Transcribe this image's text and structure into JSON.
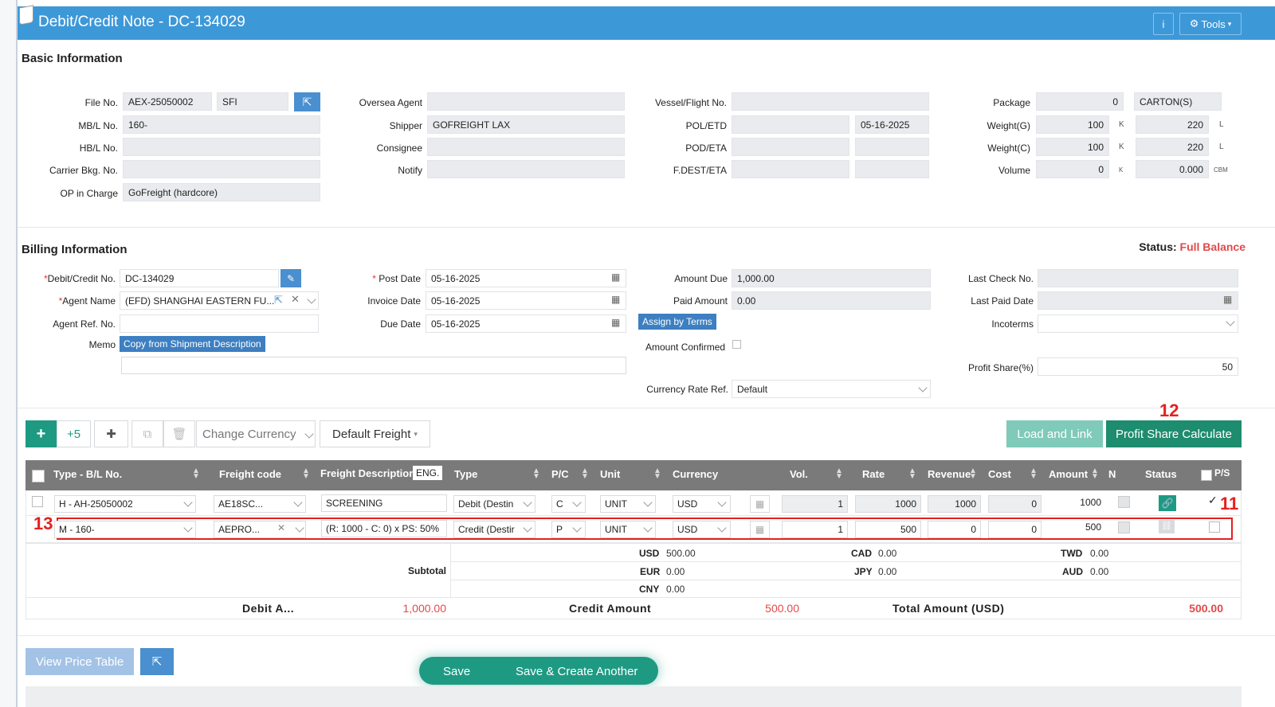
{
  "header": {
    "title": "Debit/Credit Note - DC-134029",
    "info_label": "i",
    "tools_label": "Tools"
  },
  "basic": {
    "title": "Basic Information",
    "file_no_label": "File No.",
    "file_no": "AEX-25050002",
    "file_sfi": "SFI",
    "mbl_label": "MB/L No.",
    "mbl": "160-",
    "hbl_label": "HB/L No.",
    "hbl": "",
    "carrier_label": "Carrier Bkg. No.",
    "carrier": "",
    "op_label": "OP in Charge",
    "op": "GoFreight (hardcore)",
    "oversea_label": "Oversea Agent",
    "oversea": "",
    "shipper_label": "Shipper",
    "shipper": "GOFREIGHT LAX",
    "consignee_label": "Consignee",
    "consignee": "",
    "notify_label": "Notify",
    "notify": "",
    "vessel_label": "Vessel/Flight No.",
    "vessel": "",
    "pol_label": "POL/ETD",
    "pol": "",
    "etd": "05-16-2025",
    "pod_label": "POD/ETA",
    "pod": "",
    "eta": "",
    "fdest_label": "F.DEST/ETA",
    "fdest": "",
    "fdest_eta": "",
    "package_label": "Package",
    "package": "0",
    "package_unit": "CARTON(S)",
    "weightg_label": "Weight(G)",
    "weightg_k": "100",
    "weightg_k_unit": "K",
    "weightg_l": "220",
    "weightg_l_unit": "L",
    "weightc_label": "Weight(C)",
    "weightc_k": "100",
    "weightc_k_unit": "K",
    "weightc_l": "220",
    "weightc_l_unit": "L",
    "volume_label": "Volume",
    "volume_k": "0",
    "volume_k_unit": "K",
    "volume_cbm": "0.000",
    "volume_cbm_unit": "CBM"
  },
  "billing": {
    "title": "Billing Information",
    "status_label": "Status:",
    "status": "Full Balance",
    "dc_no_label": "Debit/Credit No.",
    "dc_no": "DC-134029",
    "agent_label": "Agent Name",
    "agent": "(EFD) SHANGHAI EASTERN FU...",
    "agent_ref_label": "Agent Ref. No.",
    "agent_ref": "",
    "memo_label": "Memo",
    "copy_btn": "Copy from Shipment Description",
    "post_date_label": "Post Date",
    "post_date": "05-16-2025",
    "invoice_date_label": "Invoice Date",
    "invoice_date": "05-16-2025",
    "due_date_label": "Due Date",
    "due_date": "05-16-2025",
    "amount_due_label": "Amount Due",
    "amount_due": "1,000.00",
    "paid_label": "Paid Amount",
    "paid": "0.00",
    "assign_btn": "Assign by Terms",
    "confirmed_label": "Amount Confirmed",
    "rate_ref_label": "Currency Rate Ref.",
    "rate_ref": "Default",
    "last_check_label": "Last Check No.",
    "last_check": "",
    "last_paid_label": "Last Paid Date",
    "last_paid": "",
    "incoterms_label": "Incoterms",
    "incoterms": "",
    "profit_label": "Profit Share(%)",
    "profit": "50"
  },
  "toolbar": {
    "add": "+",
    "plus5": "+5",
    "change_currency": "Change Currency",
    "default_freight": "Default Freight",
    "load_link": "Load and Link",
    "profit_calc": "Profit Share Calculate"
  },
  "table": {
    "headers": {
      "type": "Type - B/L No.",
      "freight_code": "Freight code",
      "desc": "Freight Description",
      "eng": "ENG.",
      "type2": "Type",
      "pc": "P/C",
      "unit": "Unit",
      "currency": "Currency",
      "vol": "Vol.",
      "rate": "Rate",
      "revenue": "Revenue",
      "cost": "Cost",
      "amount": "Amount",
      "n": "N",
      "status": "Status",
      "ps": "P/S"
    },
    "rows": [
      {
        "type": "H - AH-25050002",
        "code": "AE18SC...",
        "desc": "SCREENING",
        "dc": "Debit (Destin",
        "pc": "C",
        "unit": "UNIT",
        "cur": "USD",
        "vol": "1",
        "rate": "1000",
        "revenue": "1000",
        "cost": "0",
        "amount": "1000"
      },
      {
        "type": "M - 160-",
        "code": "AEPRO...",
        "desc": "(R: 1000 - C: 0) x PS: 50%",
        "dc": "Credit (Destir",
        "pc": "P",
        "unit": "UNIT",
        "cur": "USD",
        "vol": "1",
        "rate": "500",
        "revenue": "0",
        "cost": "0",
        "amount": "500"
      }
    ]
  },
  "summary": {
    "subtotal": "Subtotal",
    "usd_l": "USD",
    "usd": "500.00",
    "eur_l": "EUR",
    "eur": "0.00",
    "cny_l": "CNY",
    "cny": "0.00",
    "cad_l": "CAD",
    "cad": "0.00",
    "jpy_l": "JPY",
    "jpy": "0.00",
    "twd_l": "TWD",
    "twd": "0.00",
    "aud_l": "AUD",
    "aud": "0.00",
    "debit_l": "Debit A...",
    "debit": "1,000.00",
    "credit_l": "Credit Amount",
    "credit": "500.00",
    "total_l": "Total Amount (USD)",
    "total": "500.00"
  },
  "footer": {
    "view_price": "View Price Table",
    "save": "Save",
    "save_create": "Save & Create Another"
  },
  "annotations": {
    "a11": "11",
    "a12": "12",
    "a13": "13"
  },
  "colors": {
    "header": "#3d98d8",
    "teal": "#1e9a83",
    "red": "#e04a4a"
  }
}
